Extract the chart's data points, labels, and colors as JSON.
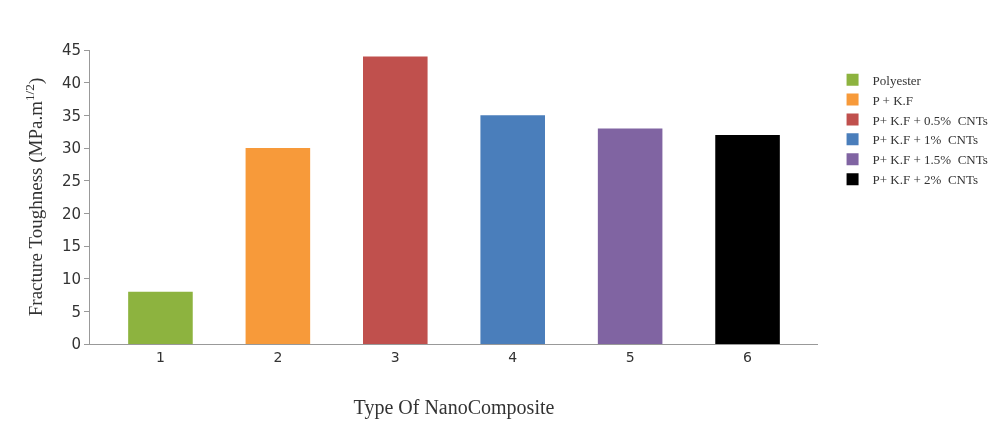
{
  "chart_data": {
    "type": "bar",
    "xlabel": "Type Of NanoComposite",
    "ylabel": "Fracture Toughness (MPa.m$^{1/2}$)",
    "categories": [
      "1",
      "2",
      "3",
      "4",
      "5",
      "6"
    ],
    "series": [
      {
        "name": "Polyester",
        "color": "#8db33f",
        "values": [
          8,
          null,
          null,
          null,
          null,
          null
        ]
      },
      {
        "name": "P + K.F",
        "color": "#f79a3a",
        "values": [
          null,
          30,
          null,
          null,
          null,
          null
        ]
      },
      {
        "name": "P+ K.F + 0.5%  CNTs",
        "color": "#c0504d",
        "values": [
          null,
          null,
          44,
          null,
          null,
          null
        ]
      },
      {
        "name": "P+ K.F + 1%  CNTs",
        "color": "#4a7ebb",
        "values": [
          null,
          null,
          null,
          35,
          null,
          null
        ]
      },
      {
        "name": "P+ K.F + 1.5%  CNTs",
        "color": "#8064a2",
        "values": [
          null,
          null,
          null,
          null,
          33,
          null
        ]
      },
      {
        "name": "P+ K.F + 2%  CNTs",
        "color": "#000000",
        "values": [
          null,
          null,
          null,
          null,
          null,
          32
        ]
      }
    ],
    "ylim": [
      0,
      45
    ],
    "yticks": [
      0,
      5,
      10,
      15,
      20,
      25,
      30,
      35,
      40,
      45
    ],
    "grid": false,
    "legend": "right"
  }
}
